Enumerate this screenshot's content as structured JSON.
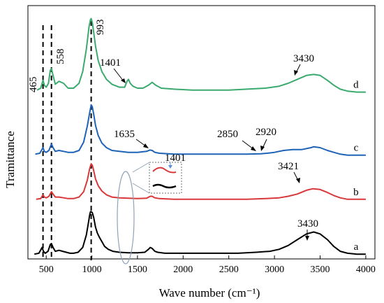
{
  "chart_data": {
    "type": "line",
    "xlabel": "Wave number (cm⁻¹)",
    "ylabel": "Tramittance",
    "xlim": [
      300,
      4100
    ],
    "xticks": [
      500,
      1000,
      1500,
      2000,
      2500,
      3000,
      3500,
      4000
    ],
    "xtick_labels": [
      "500",
      "1000",
      "1500",
      "2000",
      "2500",
      "3000",
      "3500",
      "4000"
    ],
    "grid": false,
    "dashed_markers": [
      465,
      558,
      993
    ],
    "series": [
      {
        "name": "a",
        "color": "#000000",
        "x": [
          370,
          420,
          455,
          470,
          490,
          520,
          545,
          558,
          575,
          600,
          640,
          680,
          720,
          760,
          800,
          850,
          900,
          940,
          960,
          975,
          985,
          993,
          1005,
          1020,
          1040,
          1060,
          1080,
          1110,
          1140,
          1180,
          1230,
          1300,
          1400,
          1500,
          1580,
          1620,
          1640,
          1660,
          1690,
          1720,
          1800,
          2000,
          2200,
          2400,
          2600,
          2800,
          2950,
          3050,
          3150,
          3250,
          3350,
          3430,
          3500,
          3580,
          3650,
          3720,
          3800,
          3900,
          4000
        ],
        "y": [
          0.02,
          0.03,
          0.09,
          0.05,
          0.03,
          0.05,
          0.12,
          0.13,
          0.09,
          0.05,
          0.06,
          0.05,
          0.04,
          0.03,
          0.03,
          0.04,
          0.09,
          0.22,
          0.33,
          0.42,
          0.46,
          0.46,
          0.45,
          0.4,
          0.3,
          0.24,
          0.2,
          0.15,
          0.1,
          0.07,
          0.05,
          0.04,
          0.035,
          0.035,
          0.04,
          0.07,
          0.09,
          0.08,
          0.05,
          0.04,
          0.03,
          0.03,
          0.03,
          0.03,
          0.03,
          0.04,
          0.05,
          0.07,
          0.11,
          0.17,
          0.23,
          0.25,
          0.23,
          0.17,
          0.1,
          0.05,
          0.03,
          0.02,
          0.02
        ]
      },
      {
        "name": "b",
        "color": "#d9383a",
        "x": [
          390,
          440,
          465,
          480,
          500,
          530,
          558,
          575,
          600,
          640,
          690,
          740,
          800,
          860,
          910,
          950,
          975,
          993,
          1005,
          1020,
          1040,
          1070,
          1110,
          1160,
          1220,
          1300,
          1400,
          1500,
          1600,
          1640,
          1660,
          1690,
          1740,
          1900,
          2100,
          2300,
          2500,
          2700,
          2900,
          3050,
          3150,
          3250,
          3350,
          3421,
          3500,
          3580,
          3650,
          3720,
          3800,
          3900,
          4000
        ],
        "y": [
          0.02,
          0.03,
          0.08,
          0.05,
          0.04,
          0.06,
          0.12,
          0.09,
          0.05,
          0.05,
          0.04,
          0.03,
          0.03,
          0.05,
          0.12,
          0.27,
          0.42,
          0.49,
          0.47,
          0.4,
          0.29,
          0.2,
          0.13,
          0.08,
          0.05,
          0.04,
          0.035,
          0.03,
          0.035,
          0.06,
          0.06,
          0.04,
          0.03,
          0.02,
          0.02,
          0.02,
          0.02,
          0.02,
          0.03,
          0.04,
          0.06,
          0.09,
          0.14,
          0.16,
          0.15,
          0.11,
          0.07,
          0.04,
          0.02,
          0.02,
          0.02
        ]
      },
      {
        "name": "c",
        "color": "#1f63b6",
        "x": [
          380,
          430,
          465,
          480,
          500,
          530,
          558,
          575,
          600,
          640,
          690,
          740,
          800,
          860,
          910,
          950,
          975,
          993,
          1005,
          1020,
          1040,
          1070,
          1110,
          1160,
          1220,
          1300,
          1400,
          1500,
          1600,
          1635,
          1660,
          1690,
          1740,
          1900,
          2100,
          2300,
          2500,
          2700,
          2850,
          2920,
          3000,
          3100,
          3200,
          3300,
          3400,
          3430,
          3500,
          3580,
          3650,
          3720,
          3800,
          3900,
          4000
        ],
        "y": [
          0.02,
          0.03,
          0.09,
          0.05,
          0.04,
          0.06,
          0.13,
          0.09,
          0.05,
          0.06,
          0.05,
          0.04,
          0.04,
          0.06,
          0.15,
          0.32,
          0.46,
          0.55,
          0.53,
          0.45,
          0.33,
          0.22,
          0.14,
          0.09,
          0.06,
          0.05,
          0.04,
          0.04,
          0.05,
          0.065,
          0.06,
          0.04,
          0.03,
          0.02,
          0.02,
          0.02,
          0.02,
          0.02,
          0.025,
          0.03,
          0.04,
          0.06,
          0.07,
          0.07,
          0.09,
          0.1,
          0.09,
          0.06,
          0.04,
          0.02,
          0.01,
          0.01,
          0.01
        ]
      },
      {
        "name": "d",
        "color": "#3aaa6e",
        "x": [
          400,
          440,
          465,
          480,
          500,
          525,
          545,
          558,
          575,
          600,
          640,
          690,
          740,
          800,
          860,
          900,
          940,
          970,
          985,
          993,
          1005,
          1020,
          1040,
          1070,
          1110,
          1160,
          1220,
          1300,
          1360,
          1385,
          1401,
          1420,
          1450,
          1500,
          1560,
          1620,
          1660,
          1700,
          1760,
          1900,
          2100,
          2300,
          2500,
          2700,
          2900,
          3050,
          3150,
          3250,
          3350,
          3430,
          3500,
          3580,
          3650,
          3720,
          3800,
          3900,
          4000
        ],
        "y": [
          0.03,
          0.05,
          0.13,
          0.08,
          0.06,
          0.1,
          0.23,
          0.25,
          0.18,
          0.09,
          0.12,
          0.1,
          0.05,
          0.05,
          0.1,
          0.22,
          0.45,
          0.68,
          0.75,
          0.76,
          0.72,
          0.62,
          0.48,
          0.33,
          0.22,
          0.14,
          0.09,
          0.06,
          0.06,
          0.12,
          0.14,
          0.1,
          0.07,
          0.05,
          0.05,
          0.08,
          0.11,
          0.08,
          0.05,
          0.04,
          0.03,
          0.03,
          0.03,
          0.04,
          0.05,
          0.07,
          0.1,
          0.14,
          0.18,
          0.19,
          0.18,
          0.13,
          0.08,
          0.04,
          0.02,
          0.01,
          0.01
        ]
      }
    ],
    "annotations": {
      "marker_465": "465",
      "marker_558": "558",
      "marker_993": "993",
      "d_1401": "1401",
      "d_3430": "3430",
      "c_1635": "1635",
      "c_2850": "2850",
      "c_2920": "2920",
      "b_3421": "3421",
      "inset_1401": "1401",
      "a_3430": "3430"
    }
  }
}
